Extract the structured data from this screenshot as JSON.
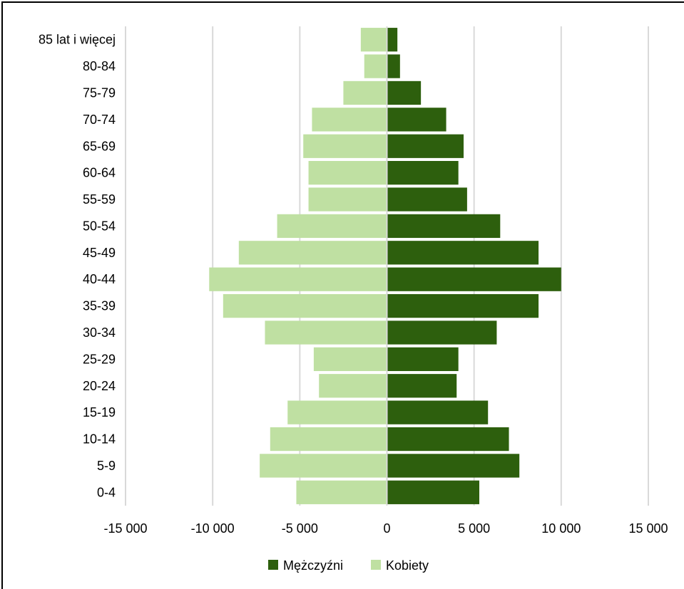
{
  "chart_data": {
    "type": "bar",
    "orientation": "horizontal",
    "categories": [
      "0-4",
      "5-9",
      "10-14",
      "15-19",
      "20-24",
      "25-29",
      "30-34",
      "35-39",
      "40-44",
      "45-49",
      "50-54",
      "55-59",
      "60-64",
      "65-69",
      "70-74",
      "75-79",
      "80-84",
      "85 lat i więcej"
    ],
    "series": [
      {
        "name": "Mężczyźni",
        "color": "#2d5f0d",
        "values": [
          5300,
          7600,
          7000,
          5800,
          4000,
          4100,
          6300,
          8700,
          10000,
          8700,
          6500,
          4600,
          4100,
          4400,
          3400,
          1950,
          750,
          600
        ]
      },
      {
        "name": "Kobiety",
        "color": "#bfe0a2",
        "values": [
          -5200,
          -7300,
          -6700,
          -5700,
          -3900,
          -4200,
          -7000,
          -9400,
          -10200,
          -8500,
          -6300,
          -4500,
          -4500,
          -4800,
          -4300,
          -2500,
          -1300,
          -1500
        ]
      }
    ],
    "xlim": [
      -15000,
      15000
    ],
    "x_ticks": [
      {
        "value": -15000,
        "label": "-15 000"
      },
      {
        "value": -10000,
        "label": "-10 000"
      },
      {
        "value": -5000,
        "label": "-5 000"
      },
      {
        "value": 0,
        "label": "0"
      },
      {
        "value": 5000,
        "label": "5 000"
      },
      {
        "value": 10000,
        "label": "10 000"
      },
      {
        "value": 15000,
        "label": "15 000"
      }
    ],
    "grid": true,
    "legend_position": "bottom"
  }
}
